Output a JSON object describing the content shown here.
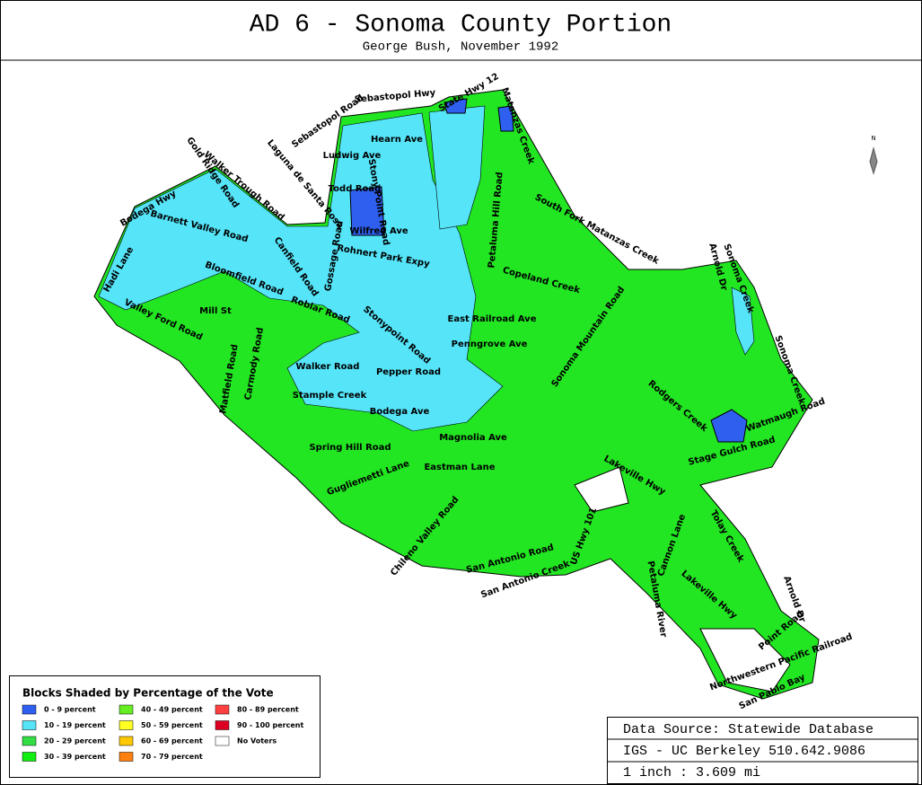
{
  "header": {
    "title": "AD 6 - Sonoma County Portion",
    "subtitle": "George Bush, November 1992"
  },
  "north": "N",
  "legend": {
    "title": "Blocks Shaded by Percentage of the Vote",
    "items": [
      {
        "label": "0 - 9 percent",
        "color": "#2f5fef"
      },
      {
        "label": "10 - 19 percent",
        "color": "#55e4f8"
      },
      {
        "label": "20 - 29 percent",
        "color": "#33dd44"
      },
      {
        "label": "30 - 39 percent",
        "color": "#11ee11"
      },
      {
        "label": "40 - 49 percent",
        "color": "#66ee22"
      },
      {
        "label": "50 - 59 percent",
        "color": "#ffff22"
      },
      {
        "label": "60 - 69 percent",
        "color": "#ffc800"
      },
      {
        "label": "70 - 79 percent",
        "color": "#ff7f11"
      },
      {
        "label": "80 - 89 percent",
        "color": "#ff4040"
      },
      {
        "label": "90 - 100 percent",
        "color": "#dd0022"
      },
      {
        "label": "No Voters",
        "color": "#ffffff"
      }
    ]
  },
  "source": {
    "lines": [
      "Data Source: Statewide Database",
      "IGS - UC Berkeley 510.642.9086",
      "1 inch : 3.609 mi"
    ]
  },
  "map": {
    "labels": [
      "Sebastopol Hwy",
      "State Hwy 12",
      "Matanzas Creek",
      "Sebastopol Road",
      "Laguna de Santa Rosa",
      "Hearn Ave",
      "Ludwig Ave",
      "Gold Ridge Road",
      "Walker Trough Road",
      "Bodega Hwy",
      "Todd Road",
      "Stony Point Road",
      "Barnett Valley Road",
      "Petaluma Hill Road",
      "Wilfred Ave",
      "Rohnert Park Expy",
      "Canfield Road",
      "Gossage Road",
      "Bloomfield Road",
      "South Fork Matanzas Creek",
      "Copeland Creek",
      "Hadi Lane",
      "Roblar Road",
      "Valley Ford Road",
      "Mill St",
      "Stonypoint Road",
      "East Railroad Ave",
      "Penngrove Ave",
      "Sonoma Mountain Road",
      "Arnold Dr",
      "Sonoma Creek",
      "Walker Road",
      "Pepper Road",
      "Stample Creek",
      "Carmody Road",
      "Matfield Road",
      "Bodega Ave",
      "Spring Hill Road",
      "Magnolia Ave",
      "Eastman Lane",
      "Gugliemetti Lane",
      "Chileno Valley Road",
      "San Antonio Road",
      "San Antonio Creek",
      "US Hwy 101",
      "Lakeville Hwy",
      "Stage Gulch Road",
      "Watmaugh Road",
      "Rodgers Creek",
      "Sonoma Creek",
      "Cannon Lane",
      "Tolay Creek",
      "Lakeville Hwy",
      "Arnold Dr",
      "Point Road",
      "Northwestern Pacific Railroad",
      "San Pablo Bay",
      "Petaluma River"
    ]
  }
}
